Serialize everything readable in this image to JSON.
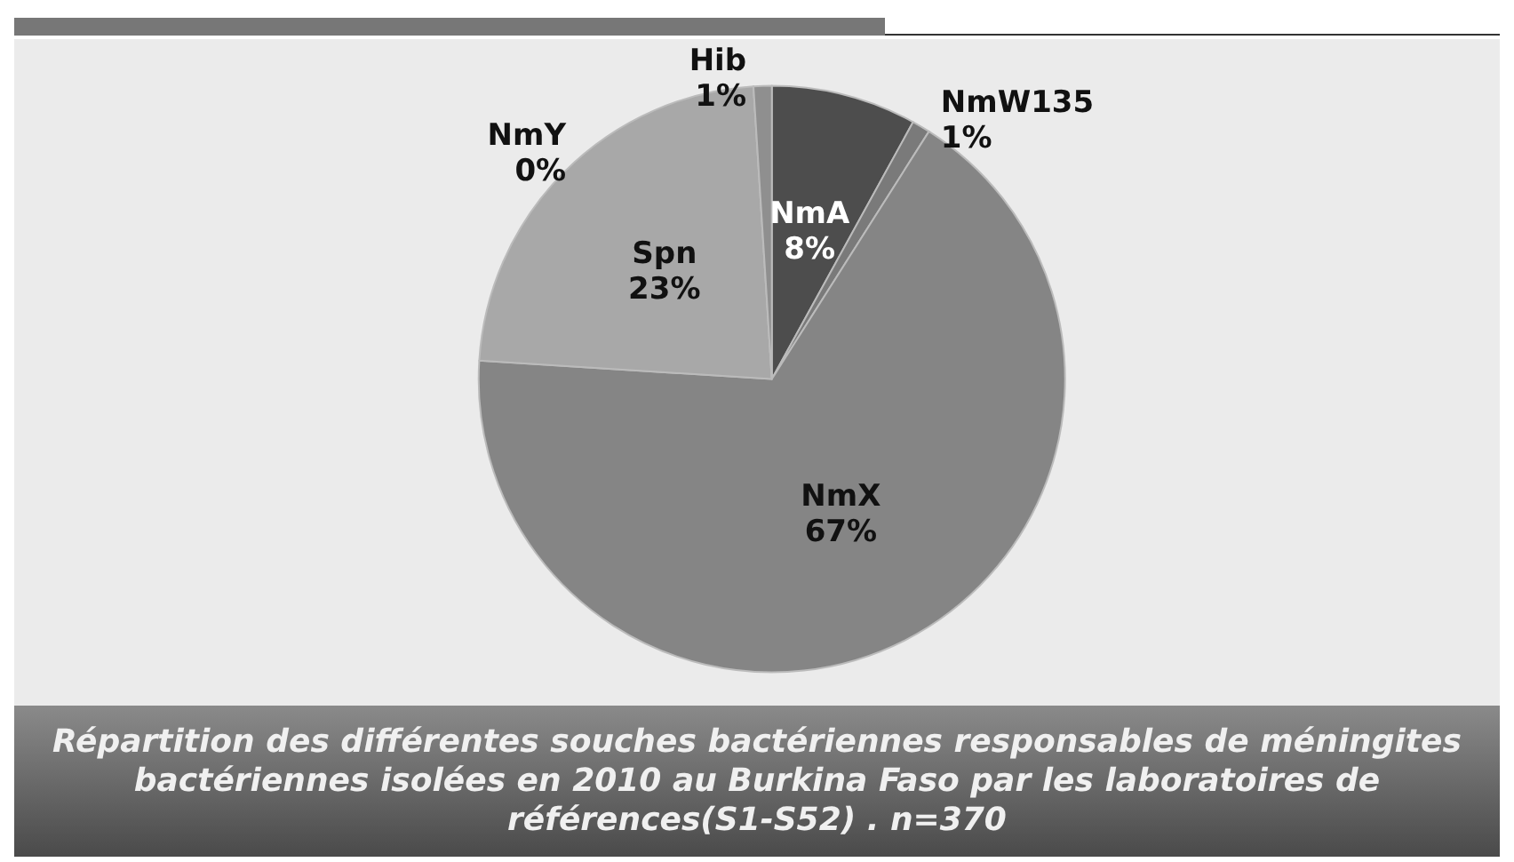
{
  "chart_data": {
    "type": "pie",
    "title": "Répartition des différentes souches bactériennes responsables de méningites bactériennes isolées en 2010 au Burkina Faso par les laboratoires de références(S1-S52) . n=370",
    "categories": [
      "NmA",
      "NmW135",
      "NmX",
      "Spn",
      "NmY",
      "Hib"
    ],
    "values": [
      8,
      1,
      67,
      23,
      0,
      1
    ],
    "colors": [
      "#4d4d4d",
      "#7a7a7a",
      "#858585",
      "#a8a8a8",
      "#9a9a9a",
      "#8f8f8f"
    ],
    "value_labels": [
      "8%",
      "1%",
      "67%",
      "23%",
      "0%",
      "1%"
    ],
    "legend": false
  }
}
